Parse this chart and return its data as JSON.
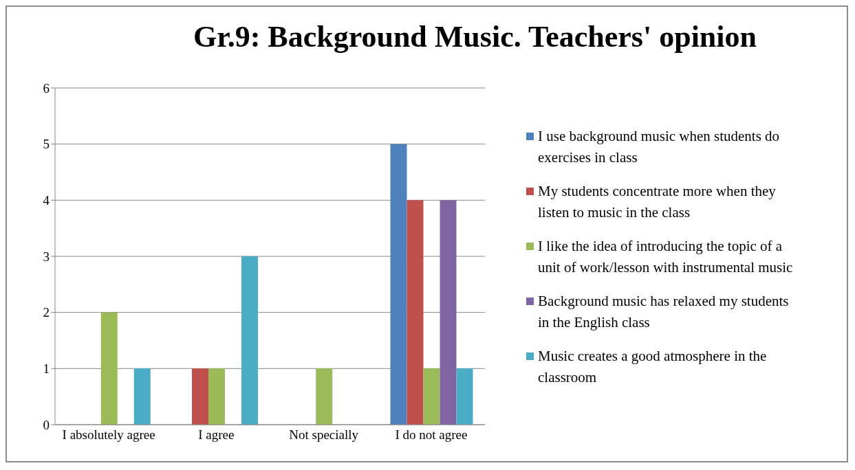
{
  "chart_data": {
    "type": "bar",
    "title": "Gr.9: Background Music. Teachers' opinion",
    "categories": [
      "I absolutely agree",
      "I agree",
      "Not specially",
      "I do not agree"
    ],
    "series": [
      {
        "name": "I use background music when students do exercises in class",
        "color": "#4f81bd",
        "values": [
          0,
          0,
          0,
          5
        ]
      },
      {
        "name": "My students concentrate more when they listen to music in the class",
        "color": "#c0504d",
        "values": [
          0,
          1,
          0,
          4
        ]
      },
      {
        "name": "I like the idea of introducing the topic of a unit of work/lesson with instrumental music",
        "color": "#9bbb59",
        "values": [
          2,
          1,
          1,
          1
        ]
      },
      {
        "name": "Background music has relaxed my students in the English class",
        "color": "#8064a2",
        "values": [
          0,
          0,
          0,
          4
        ]
      },
      {
        "name": "Music creates a good atmosphere in the classroom",
        "color": "#4bacc6",
        "values": [
          1,
          3,
          0,
          1
        ]
      }
    ],
    "ylim": [
      0,
      6
    ],
    "yticks": [
      0,
      1,
      2,
      3,
      4,
      5,
      6
    ],
    "grid": "y",
    "legend": "right"
  }
}
